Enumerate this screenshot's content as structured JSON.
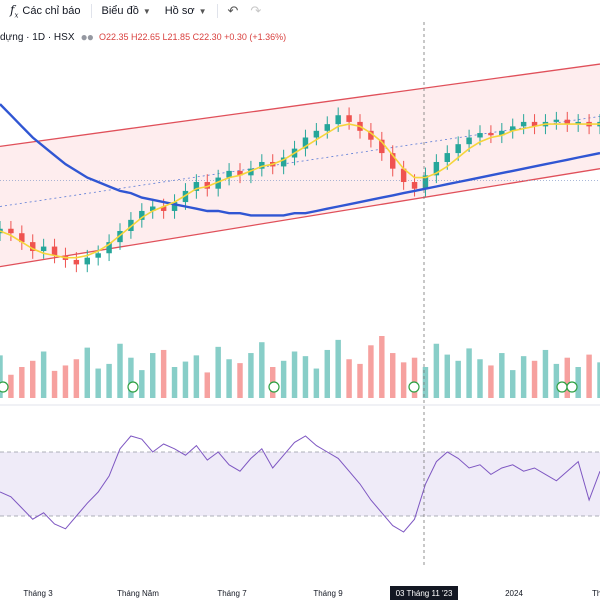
{
  "toolbar": {
    "indicators_label": "Các chỉ báo",
    "chart_label": "Biểu đồ",
    "profile_label": "Hồ sơ"
  },
  "legend": {
    "symbol": "dựng · 1D · HSX",
    "ohlc": "O22.35 H22.65 L21.85 C22.30 +0.30 (+1.36%)"
  },
  "xaxis": {
    "labels": [
      "Tháng 3",
      "Tháng Năm",
      "Tháng 7",
      "Tháng 9",
      "2024",
      "Thá"
    ],
    "crosshair_label": "03 Tháng 11 '23"
  },
  "chart_data": {
    "type": "line",
    "candle_close": [
      20.2,
      20.0,
      19.6,
      19.2,
      19.4,
      19.0,
      18.8,
      18.6,
      18.9,
      19.1,
      19.6,
      20.1,
      20.6,
      21.0,
      21.2,
      21.0,
      21.4,
      21.9,
      22.3,
      22.0,
      22.5,
      22.8,
      22.6,
      22.9,
      23.2,
      23.0,
      23.4,
      23.8,
      24.3,
      24.6,
      24.9,
      25.3,
      25.0,
      24.6,
      24.2,
      23.6,
      22.9,
      22.3,
      22.0,
      22.6,
      23.2,
      23.6,
      24.0,
      24.3,
      24.5,
      24.4,
      24.6,
      24.8,
      25.0,
      24.8,
      25.0,
      25.1,
      24.9,
      25.0,
      24.8,
      25.0
    ],
    "ma_short": [
      20.1,
      19.9,
      19.6,
      19.3,
      19.1,
      19.0,
      18.9,
      18.9,
      19.0,
      19.2,
      19.5,
      19.9,
      20.3,
      20.7,
      21.0,
      21.2,
      21.4,
      21.7,
      22.0,
      22.1,
      22.3,
      22.5,
      22.6,
      22.8,
      23.0,
      23.1,
      23.3,
      23.6,
      23.9,
      24.2,
      24.5,
      24.8,
      24.9,
      24.8,
      24.5,
      24.1,
      23.5,
      22.9,
      22.5,
      22.5,
      22.7,
      23.0,
      23.4,
      23.8,
      24.1,
      24.3,
      24.4,
      24.6,
      24.7,
      24.8,
      24.9,
      24.9,
      24.9,
      24.9,
      24.9,
      24.9
    ],
    "ma_long": [
      25.8,
      25.3,
      24.8,
      24.3,
      23.9,
      23.5,
      23.1,
      22.8,
      22.5,
      22.3,
      22.1,
      21.9,
      21.8,
      21.6,
      21.5,
      21.4,
      21.3,
      21.2,
      21.1,
      21.0,
      21.0,
      20.9,
      20.9,
      20.8,
      20.8,
      20.8,
      20.8,
      20.9,
      20.9,
      21.0,
      21.1,
      21.2,
      21.3,
      21.4,
      21.5,
      21.6,
      21.7,
      21.8,
      21.9,
      22.0,
      22.1,
      22.2,
      22.3,
      22.4,
      22.5,
      22.6,
      22.7,
      22.8,
      22.9,
      23.0,
      23.1,
      23.2,
      23.3,
      23.4,
      23.5,
      23.6
    ],
    "volume": [
      55,
      30,
      40,
      48,
      60,
      35,
      42,
      50,
      65,
      38,
      44,
      70,
      52,
      36,
      58,
      62,
      40,
      47,
      55,
      33,
      66,
      50,
      45,
      58,
      72,
      40,
      48,
      60,
      54,
      38,
      62,
      75,
      50,
      44,
      68,
      80,
      58,
      46,
      52,
      40,
      70,
      56,
      48,
      64,
      50,
      42,
      58,
      36,
      54,
      48,
      62,
      44,
      52,
      40,
      56,
      46
    ],
    "rsi": [
      45,
      42,
      35,
      28,
      32,
      25,
      22,
      30,
      38,
      45,
      55,
      72,
      80,
      78,
      70,
      75,
      72,
      68,
      74,
      65,
      70,
      62,
      58,
      66,
      72,
      60,
      68,
      76,
      80,
      74,
      70,
      66,
      58,
      50,
      40,
      32,
      24,
      20,
      28,
      50,
      64,
      70,
      66,
      60,
      62,
      56,
      60,
      62,
      58,
      60,
      56,
      52,
      58,
      64,
      40,
      58
    ],
    "channel_upper_y": [
      23.9,
      27.6
    ],
    "channel_lower_y": [
      18.5,
      22.9
    ],
    "ylim_price": [
      17.0,
      28.5
    ],
    "ylim_rsi": [
      10,
      95
    ],
    "rsi_band": [
      30,
      70
    ]
  }
}
